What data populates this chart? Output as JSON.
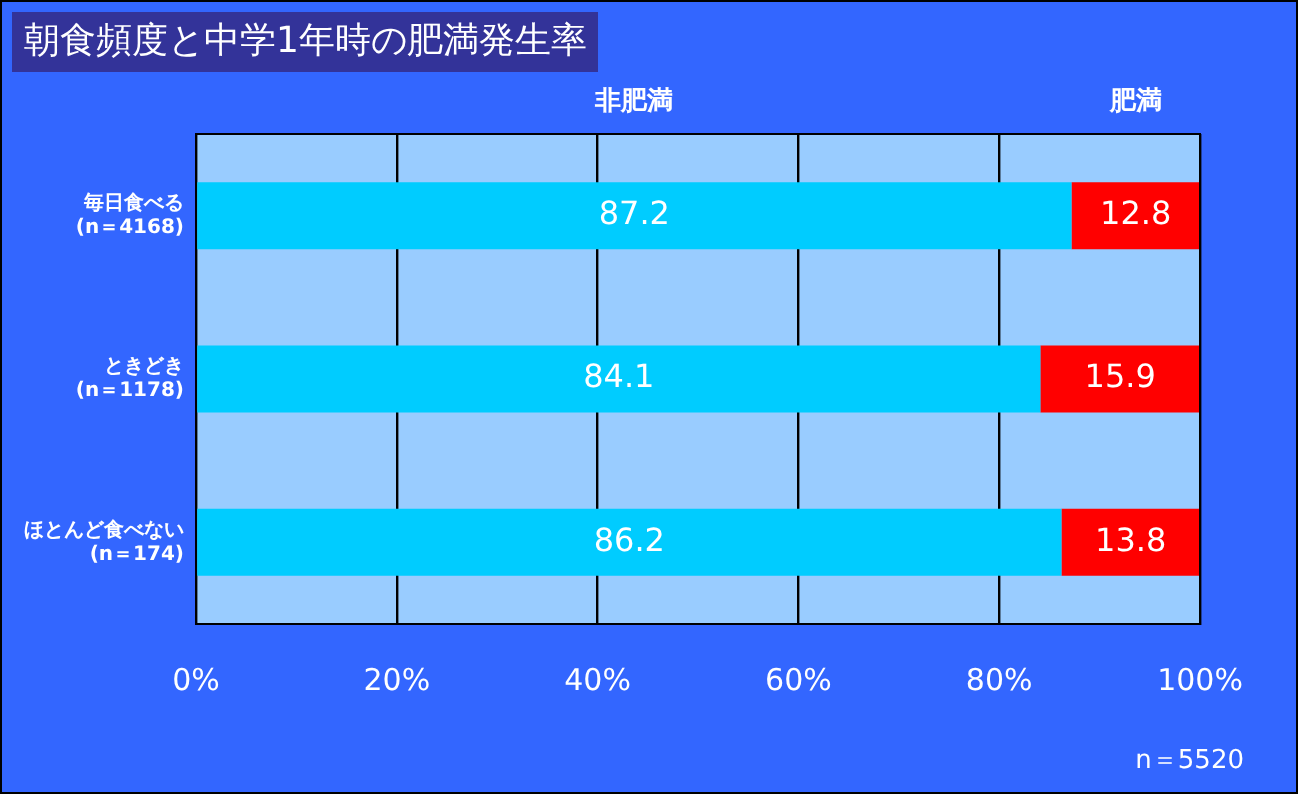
{
  "chart_data": {
    "type": "bar",
    "orientation": "horizontal",
    "stacked": true,
    "title": "朝食頻度と中学1年時の肥満発生率",
    "categories": [
      "毎日食べる\n(n＝4168)",
      "ときどき\n(n＝1178)",
      "ほとんど食べない\n(n＝174)"
    ],
    "series": [
      {
        "name": "非肥満",
        "color": "#00ccff",
        "values": [
          87.2,
          84.1,
          86.2
        ]
      },
      {
        "name": "肥満",
        "color": "#ff0000",
        "values": [
          12.8,
          15.9,
          13.8
        ]
      }
    ],
    "xlim": [
      0,
      100
    ],
    "xticks": [
      {
        "value": 0,
        "label": "0%"
      },
      {
        "value": 20,
        "label": "20%"
      },
      {
        "value": 40,
        "label": "40%"
      },
      {
        "value": 60,
        "label": "60%"
      },
      {
        "value": 80,
        "label": "80%"
      },
      {
        "value": 100,
        "label": "100%"
      }
    ],
    "grid": "x",
    "legend": "top",
    "data_labels": true,
    "annotations": [
      "n＝5520"
    ]
  }
}
